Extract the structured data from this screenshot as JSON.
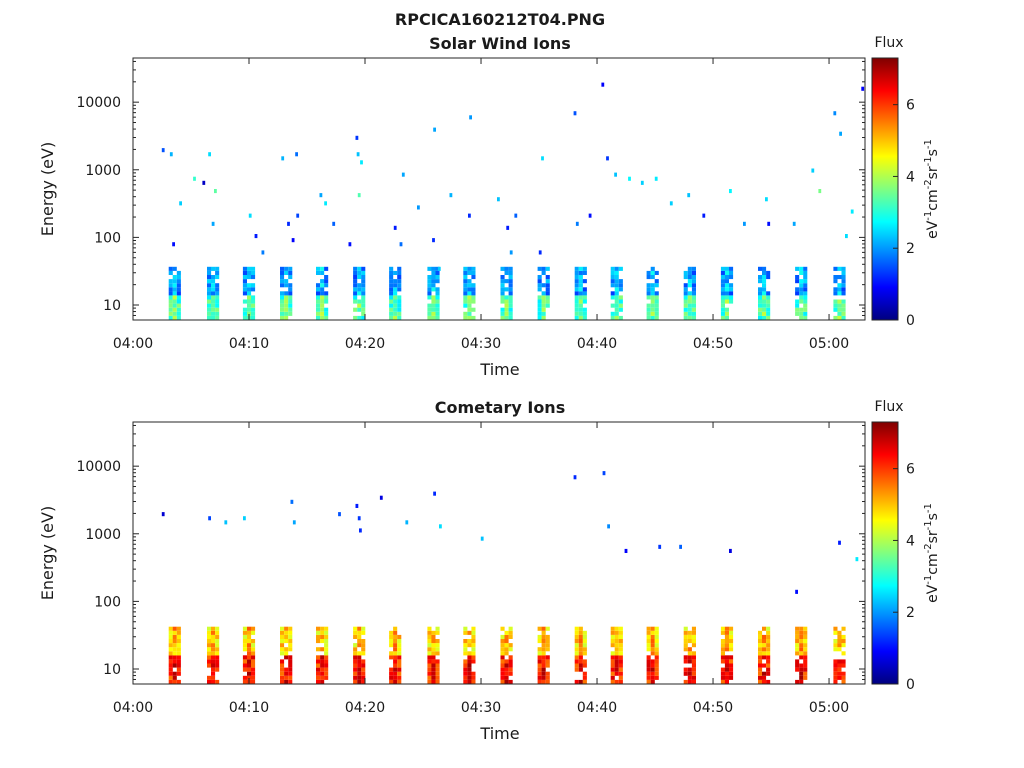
{
  "figure": {
    "title": "RPCICA160212T04.PNG"
  },
  "colorbar": {
    "title": "Flux",
    "ticks": [
      "0",
      "2",
      "4",
      "6"
    ],
    "range": [
      0,
      7.3
    ],
    "colormap": "jet",
    "colors": [
      "#00007f",
      "#0000ff",
      "#0080ff",
      "#00ffff",
      "#80ff80",
      "#ffff00",
      "#ff8000",
      "#ff0000",
      "#7f0000"
    ],
    "unit_parts": [
      {
        "t": "eV",
        "sup": false
      },
      {
        "t": "-1",
        "sup": true
      },
      {
        "t": "cm",
        "sup": false
      },
      {
        "t": "-2",
        "sup": true
      },
      {
        "t": "sr",
        "sup": false
      },
      {
        "t": "-1",
        "sup": true
      },
      {
        "t": "s",
        "sup": false
      },
      {
        "t": "-1",
        "sup": true
      }
    ]
  },
  "chart_data": [
    {
      "type": "heatmap",
      "title": "Solar Wind Ions",
      "xlabel": "Time",
      "ylabel": "Energy (eV)",
      "x_ticks": [
        "04:00",
        "04:10",
        "04:20",
        "04:30",
        "04:40",
        "04:50",
        "05:00"
      ],
      "x_range_min": [
        0,
        63.1
      ],
      "y_scale": "log",
      "y_ticks": [
        "10",
        "100",
        "1000",
        "10000"
      ],
      "y_range_ev": [
        6,
        45000
      ],
      "burst_times_min": [
        3.6,
        6.9,
        10.0,
        13.2,
        16.3,
        19.5,
        22.6,
        25.9,
        29.0,
        32.2,
        35.4,
        38.6,
        41.7,
        44.8,
        48.0,
        51.2,
        54.4,
        57.6,
        60.9
      ],
      "bursts": {
        "e_low": 6,
        "e_high": 35,
        "flux_low_band": 2.3,
        "flux_high_band": 3.6
      },
      "scatter": [
        {
          "t": 2.6,
          "e": 2000,
          "f": 1.5
        },
        {
          "t": 3.3,
          "e": 1600,
          "f": 2.2
        },
        {
          "t": 3.5,
          "e": 75,
          "f": 1.0
        },
        {
          "t": 4.1,
          "e": 300,
          "f": 2.4
        },
        {
          "t": 5.3,
          "e": 700,
          "f": 3.1
        },
        {
          "t": 6.1,
          "e": 600,
          "f": 0.5
        },
        {
          "t": 6.6,
          "e": 1700,
          "f": 2.5
        },
        {
          "t": 7.1,
          "e": 500,
          "f": 3.4
        },
        {
          "t": 6.9,
          "e": 150,
          "f": 2.1
        },
        {
          "t": 10.1,
          "e": 220,
          "f": 2.5
        },
        {
          "t": 10.6,
          "e": 110,
          "f": 1.1
        },
        {
          "t": 11.2,
          "e": 60,
          "f": 1.8
        },
        {
          "t": 12.9,
          "e": 1400,
          "f": 2.2
        },
        {
          "t": 13.4,
          "e": 170,
          "f": 1.2
        },
        {
          "t": 13.8,
          "e": 95,
          "f": 0.9
        },
        {
          "t": 14.2,
          "e": 220,
          "f": 1.4
        },
        {
          "t": 14.1,
          "e": 1600,
          "f": 1.7
        },
        {
          "t": 16.2,
          "e": 450,
          "f": 2.1
        },
        {
          "t": 16.6,
          "e": 300,
          "f": 2.6
        },
        {
          "t": 17.3,
          "e": 160,
          "f": 1.6
        },
        {
          "t": 19.3,
          "e": 2800,
          "f": 1.3
        },
        {
          "t": 19.4,
          "e": 1800,
          "f": 2.3
        },
        {
          "t": 19.7,
          "e": 1300,
          "f": 2.6
        },
        {
          "t": 19.5,
          "e": 400,
          "f": 3.3
        },
        {
          "t": 18.7,
          "e": 75,
          "f": 1.0
        },
        {
          "t": 22.6,
          "e": 130,
          "f": 1.1
        },
        {
          "t": 23.1,
          "e": 80,
          "f": 1.7
        },
        {
          "t": 23.3,
          "e": 900,
          "f": 2.1
        },
        {
          "t": 24.6,
          "e": 260,
          "f": 2.0
        },
        {
          "t": 26.0,
          "e": 3800,
          "f": 2.1
        },
        {
          "t": 25.9,
          "e": 90,
          "f": 1.2
        },
        {
          "t": 26.4,
          "e": 35,
          "f": 2.4
        },
        {
          "t": 27.4,
          "e": 400,
          "f": 2.2
        },
        {
          "t": 29.1,
          "e": 5800,
          "f": 2.0
        },
        {
          "t": 29.0,
          "e": 200,
          "f": 1.2
        },
        {
          "t": 31.5,
          "e": 350,
          "f": 2.3
        },
        {
          "t": 32.3,
          "e": 130,
          "f": 1.1
        },
        {
          "t": 32.6,
          "e": 60,
          "f": 2.0
        },
        {
          "t": 33.0,
          "e": 220,
          "f": 1.6
        },
        {
          "t": 35.3,
          "e": 1500,
          "f": 2.5
        },
        {
          "t": 35.1,
          "e": 60,
          "f": 1.2
        },
        {
          "t": 38.1,
          "e": 6500,
          "f": 1.5
        },
        {
          "t": 38.3,
          "e": 150,
          "f": 1.8
        },
        {
          "t": 39.4,
          "e": 220,
          "f": 1.0
        },
        {
          "t": 40.5,
          "e": 18000,
          "f": 0.9
        },
        {
          "t": 40.9,
          "e": 1500,
          "f": 1.3
        },
        {
          "t": 41.6,
          "e": 800,
          "f": 2.3
        },
        {
          "t": 42.8,
          "e": 700,
          "f": 2.7
        },
        {
          "t": 43.9,
          "e": 650,
          "f": 2.4
        },
        {
          "t": 45.1,
          "e": 700,
          "f": 2.6
        },
        {
          "t": 46.4,
          "e": 300,
          "f": 2.4
        },
        {
          "t": 47.9,
          "e": 400,
          "f": 2.3
        },
        {
          "t": 49.2,
          "e": 200,
          "f": 1.1
        },
        {
          "t": 51.5,
          "e": 500,
          "f": 2.7
        },
        {
          "t": 52.7,
          "e": 170,
          "f": 2.0
        },
        {
          "t": 54.6,
          "e": 380,
          "f": 2.5
        },
        {
          "t": 54.8,
          "e": 170,
          "f": 1.0
        },
        {
          "t": 57.0,
          "e": 160,
          "f": 2.1
        },
        {
          "t": 58.6,
          "e": 950,
          "f": 2.4
        },
        {
          "t": 59.2,
          "e": 500,
          "f": 3.6
        },
        {
          "t": 60.5,
          "e": 6500,
          "f": 1.9
        },
        {
          "t": 61.0,
          "e": 3500,
          "f": 2.1
        },
        {
          "t": 62.9,
          "e": 15000,
          "f": 0.9
        },
        {
          "t": 62.0,
          "e": 250,
          "f": 2.6
        },
        {
          "t": 61.5,
          "e": 110,
          "f": 2.5
        }
      ]
    },
    {
      "type": "heatmap",
      "title": "Cometary Ions",
      "xlabel": "Time",
      "ylabel": "Energy (eV)",
      "x_ticks": [
        "04:00",
        "04:10",
        "04:20",
        "04:30",
        "04:40",
        "04:50",
        "05:00"
      ],
      "x_range_min": [
        0,
        63.1
      ],
      "y_scale": "log",
      "y_ticks": [
        "10",
        "100",
        "1000",
        "10000"
      ],
      "y_range_ev": [
        6,
        45000
      ],
      "burst_times_min": [
        3.6,
        6.9,
        10.0,
        13.2,
        16.3,
        19.5,
        22.6,
        25.9,
        29.0,
        32.2,
        35.4,
        38.6,
        41.7,
        44.8,
        48.0,
        51.2,
        54.4,
        57.6,
        60.9
      ],
      "bursts": {
        "e_low": 6,
        "e_high": 40,
        "flux_low_band": 5.2,
        "flux_high_band": 6.5
      },
      "scatter": [
        {
          "t": 2.6,
          "e": 2000,
          "f": 0.6
        },
        {
          "t": 6.6,
          "e": 1600,
          "f": 1.4
        },
        {
          "t": 8.0,
          "e": 1500,
          "f": 2.3
        },
        {
          "t": 9.6,
          "e": 1600,
          "f": 2.4
        },
        {
          "t": 13.7,
          "e": 3000,
          "f": 1.7
        },
        {
          "t": 13.9,
          "e": 1500,
          "f": 2.1
        },
        {
          "t": 17.8,
          "e": 2000,
          "f": 1.5
        },
        {
          "t": 19.3,
          "e": 2700,
          "f": 1.1
        },
        {
          "t": 19.5,
          "e": 1700,
          "f": 1.3
        },
        {
          "t": 19.6,
          "e": 1100,
          "f": 1.2
        },
        {
          "t": 21.4,
          "e": 3500,
          "f": 0.7
        },
        {
          "t": 23.6,
          "e": 1500,
          "f": 2.2
        },
        {
          "t": 26.0,
          "e": 3800,
          "f": 1.2
        },
        {
          "t": 26.5,
          "e": 1300,
          "f": 2.5
        },
        {
          "t": 30.1,
          "e": 800,
          "f": 2.3
        },
        {
          "t": 38.1,
          "e": 6500,
          "f": 1.2
        },
        {
          "t": 40.6,
          "e": 7500,
          "f": 1.4
        },
        {
          "t": 41.0,
          "e": 1200,
          "f": 1.9
        },
        {
          "t": 42.5,
          "e": 550,
          "f": 0.9
        },
        {
          "t": 45.4,
          "e": 650,
          "f": 1.3
        },
        {
          "t": 47.2,
          "e": 600,
          "f": 1.6
        },
        {
          "t": 51.5,
          "e": 550,
          "f": 0.7
        },
        {
          "t": 57.2,
          "e": 130,
          "f": 1.0
        },
        {
          "t": 60.9,
          "e": 750,
          "f": 1.1
        },
        {
          "t": 62.4,
          "e": 450,
          "f": 2.6
        }
      ]
    }
  ]
}
